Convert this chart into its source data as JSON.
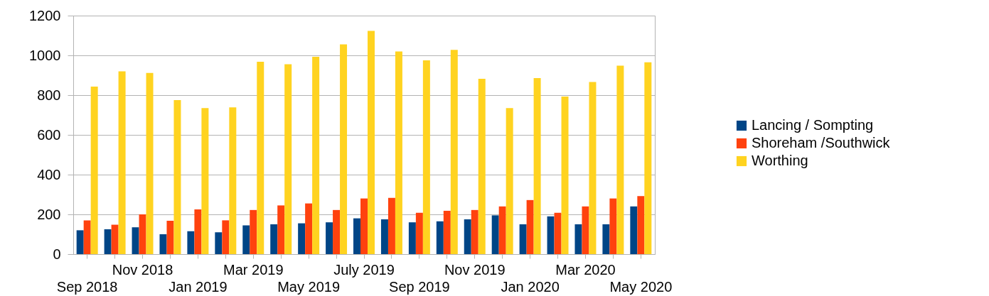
{
  "chart_data": {
    "type": "bar",
    "categories": [
      "Sep 2018",
      null,
      "Nov 2018",
      null,
      "Jan 2019",
      null,
      "Mar 2019",
      null,
      "May 2019",
      null,
      "July 2019",
      null,
      "Sep 2019",
      null,
      "Nov 2019",
      null,
      "Jan 2020",
      null,
      "Mar 2020",
      null,
      "May 2020"
    ],
    "series": [
      {
        "name": "Lancing / Sompting",
        "color": "#004586",
        "values": [
          120,
          125,
          135,
          100,
          115,
          110,
          145,
          150,
          155,
          160,
          180,
          175,
          160,
          165,
          175,
          195,
          150,
          190,
          150,
          150,
          240
        ]
      },
      {
        "name": "Shoreham /Southwick",
        "color": "#ff420e",
        "values": [
          170,
          148,
          200,
          168,
          225,
          170,
          222,
          245,
          255,
          222,
          280,
          283,
          208,
          218,
          222,
          240,
          272,
          208,
          240,
          280,
          292
        ]
      },
      {
        "name": "Worthing",
        "color": "#ffd320",
        "values": [
          843,
          920,
          912,
          775,
          735,
          738,
          968,
          955,
          993,
          1055,
          1123,
          1020,
          975,
          1028,
          882,
          735,
          886,
          793,
          866,
          948,
          965
        ]
      }
    ],
    "ylim": [
      0,
      1200
    ],
    "yticks": [
      0,
      200,
      400,
      600,
      800,
      1000,
      1200
    ],
    "grid": "y",
    "legend": "right"
  }
}
